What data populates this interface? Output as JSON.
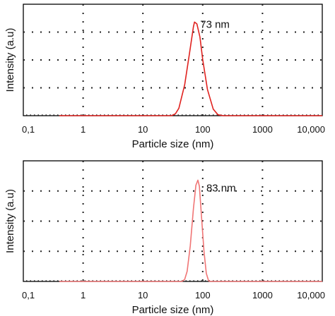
{
  "chart_data": [
    {
      "type": "line",
      "xscale": "log",
      "xlim": [
        0.1,
        10000
      ],
      "xticks": [
        "0,1",
        "1",
        "10",
        "100",
        "1000",
        "10,000"
      ],
      "xlabel": "Particle size (nm)",
      "ylabel": "Intensity (a.u)",
      "grid": "dotted",
      "annotation": "73 nm",
      "peak_x": 73,
      "series": [
        {
          "color": "#e0221f",
          "x": [
            0.4,
            30,
            35,
            40,
            50,
            60,
            70,
            73,
            80,
            90,
            100,
            120,
            150,
            180,
            220,
            10000
          ],
          "y": [
            0,
            0,
            0.02,
            0.08,
            0.33,
            0.66,
            0.95,
            1.0,
            0.98,
            0.84,
            0.6,
            0.28,
            0.07,
            0.01,
            0,
            0
          ]
        }
      ]
    },
    {
      "type": "line",
      "xscale": "log",
      "xlim": [
        0.1,
        10000
      ],
      "xticks": [
        "0,1",
        "1",
        "10",
        "100",
        "1000",
        "10,000"
      ],
      "xlabel": "Particle size (nm)",
      "ylabel": "Intensity (a.u)",
      "grid": "dotted",
      "annotation": "83 nm",
      "peak_x": 83,
      "series": [
        {
          "color": "#f07575",
          "x": [
            0.4,
            45,
            50,
            55,
            62,
            70,
            77,
            83,
            88,
            95,
            105,
            115,
            125,
            130,
            10000
          ],
          "y": [
            0,
            0,
            0.02,
            0.1,
            0.35,
            0.72,
            0.95,
            1.0,
            0.94,
            0.66,
            0.3,
            0.08,
            0.01,
            0,
            0
          ]
        }
      ]
    }
  ]
}
